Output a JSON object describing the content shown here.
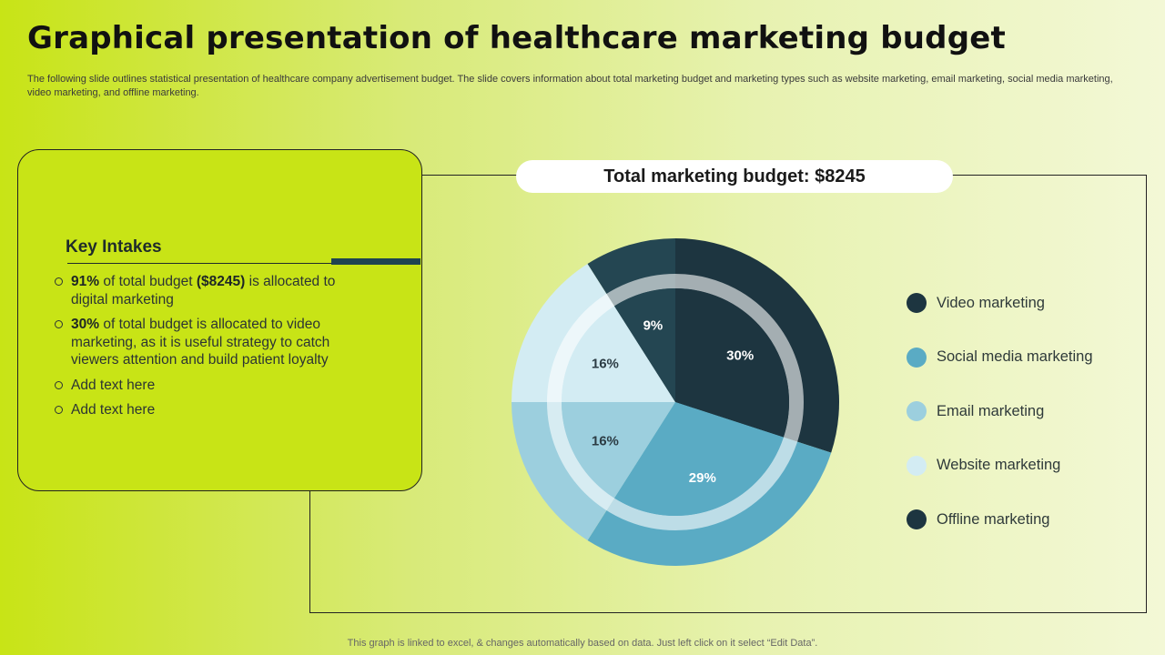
{
  "header": {
    "title": "Graphical presentation of healthcare marketing budget",
    "subtitle": "The following slide outlines statistical presentation of healthcare company advertisement budget. The slide covers information about total marketing budget and marketing types such as website marketing, email marketing, social media marketing, video marketing, and offline marketing."
  },
  "budget_label": "Total marketing budget: $8245",
  "key_intakes": {
    "title": "Key Intakes",
    "items": [
      {
        "bold1": "91%",
        "text1": " of total budget ",
        "bold2": "($8245)",
        "text2": " is allocated to digital marketing"
      },
      {
        "bold1": "30%",
        "text1": " of total budget is allocated to video marketing, as it is useful strategy to catch viewers attention and build patient loyalty",
        "bold2": "",
        "text2": ""
      },
      {
        "bold1": "",
        "text1": "Add text here",
        "bold2": "",
        "text2": ""
      },
      {
        "bold1": "",
        "text1": "Add text here",
        "bold2": "",
        "text2": ""
      }
    ]
  },
  "chart_data": {
    "type": "pie",
    "categories": [
      "Video marketing",
      "Social media marketing",
      "Email marketing",
      "Website marketing",
      "Offline marketing"
    ],
    "values": [
      30,
      29,
      16,
      16,
      9
    ],
    "value_labels": [
      "30%",
      "29%",
      "16%",
      "16%",
      "9%"
    ],
    "colors": [
      "#1d3540",
      "#5aabc4",
      "#9ccfde",
      "#d3ecf3",
      "#244652"
    ],
    "label_colors": [
      "#ffffff",
      "#ffffff",
      "#2c3c44",
      "#2c3c44",
      "#ffffff"
    ],
    "legend_colors": [
      "#1d3540",
      "#5aabc4",
      "#9ccfde",
      "#d3ecf3",
      "#1d3540"
    ],
    "legend": "right"
  },
  "footer": "This graph is linked to excel, & changes automatically based on data. Just left click on it select “Edit Data”."
}
